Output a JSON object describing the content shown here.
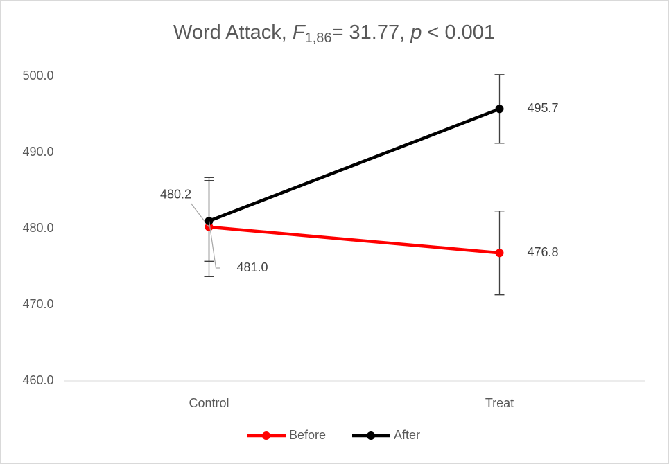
{
  "chart_data": {
    "type": "line",
    "title": [
      "Word Attack, ",
      "F",
      "1,86",
      "= 31.77, ",
      "p",
      " < 0.001"
    ],
    "categories": [
      "Control",
      "Treat"
    ],
    "series": [
      {
        "name": "Before",
        "color": "#ff0000",
        "values": [
          480.2,
          476.8
        ],
        "errors": [
          6.5,
          5.5
        ],
        "value_labels": [
          "480.2",
          "476.8"
        ]
      },
      {
        "name": "After",
        "color": "#000000",
        "values": [
          481.0,
          495.7
        ],
        "errors": [
          5.3,
          4.5
        ],
        "value_labels": [
          "481.0",
          "495.7"
        ]
      }
    ],
    "ylim": [
      460,
      500
    ],
    "yticks": [
      {
        "value": 460,
        "label": "460.0"
      },
      {
        "value": 470,
        "label": "470.0"
      },
      {
        "value": 480,
        "label": "480.0"
      },
      {
        "value": 490,
        "label": "490.0"
      },
      {
        "value": 500,
        "label": "500.0"
      }
    ],
    "grid": false,
    "legend": "bottom"
  }
}
